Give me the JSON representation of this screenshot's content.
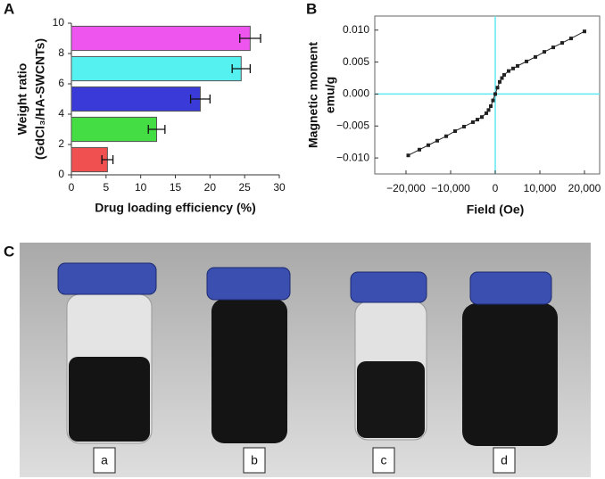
{
  "panel_labels": [
    "A",
    "B",
    "C"
  ],
  "chart_data": [
    {
      "type": "bar",
      "orientation": "horizontal",
      "ylabel": [
        "Weight ratio",
        "(GdCl₃/HA-SWCNTs)"
      ],
      "xlabel": "Drug loading efficiency (%)",
      "categories": [
        null,
        null,
        null,
        null,
        null
      ],
      "values": [
        5.2,
        12.3,
        18.6,
        24.5,
        25.8
      ],
      "errors": [
        0.8,
        1.2,
        1.4,
        1.3,
        1.5
      ],
      "colors": [
        "#f05050",
        "#44dd44",
        "#3a3ad8",
        "#55f0f0",
        "#ee55ee"
      ],
      "xlim": [
        0,
        30
      ],
      "xticks": [
        0,
        5,
        10,
        15,
        20,
        25,
        30
      ],
      "ylim": [
        0,
        10
      ],
      "yticks": [
        0,
        2,
        4,
        6,
        8,
        10
      ]
    },
    {
      "type": "line",
      "marker": "square",
      "color": "#222222",
      "xlabel": "Field (Oe)",
      "ylabel": [
        "Magnetic moment",
        "emu/g"
      ],
      "x": [
        -19500,
        -17000,
        -15000,
        -13000,
        -11000,
        -9000,
        -7000,
        -5000,
        -4000,
        -3000,
        -2000,
        -1500,
        -1000,
        -500,
        0,
        500,
        1000,
        1500,
        2000,
        3000,
        4000,
        5000,
        7000,
        9000,
        11000,
        13000,
        15000,
        17000,
        20000
      ],
      "y": [
        -0.0096,
        -0.0087,
        -0.008,
        -0.0073,
        -0.0066,
        -0.0058,
        -0.0051,
        -0.0044,
        -0.004,
        -0.0036,
        -0.003,
        -0.0025,
        -0.0019,
        -0.001,
        0,
        0.001,
        0.0019,
        0.0025,
        0.003,
        0.0036,
        0.004,
        0.0044,
        0.0051,
        0.0058,
        0.0066,
        0.0073,
        0.008,
        0.0087,
        0.0098
      ],
      "xlim": [
        -27000,
        23400
      ],
      "xticks": [
        {
          "value": -20000,
          "label": "−20,000"
        },
        {
          "value": -10000,
          "label": "−10,000"
        },
        0,
        {
          "value": 10000,
          "label": "10,000"
        },
        {
          "value": 20000,
          "label": "20,000"
        }
      ],
      "ylim": [
        -0.0125,
        0.0122
      ],
      "yticks": [
        {
          "value": -0.01,
          "label": "−0.010"
        },
        {
          "value": -0.005,
          "label": "−0.005"
        },
        {
          "value": 0,
          "label": "0.000"
        },
        {
          "value": 0.005,
          "label": "0.005"
        },
        {
          "value": 0.01,
          "label": "0.010"
        }
      ],
      "zero_lines": true,
      "zero_line_color": "#5ee8f0"
    }
  ],
  "photo": {
    "labels": [
      "a",
      "b",
      "c",
      "d"
    ]
  }
}
